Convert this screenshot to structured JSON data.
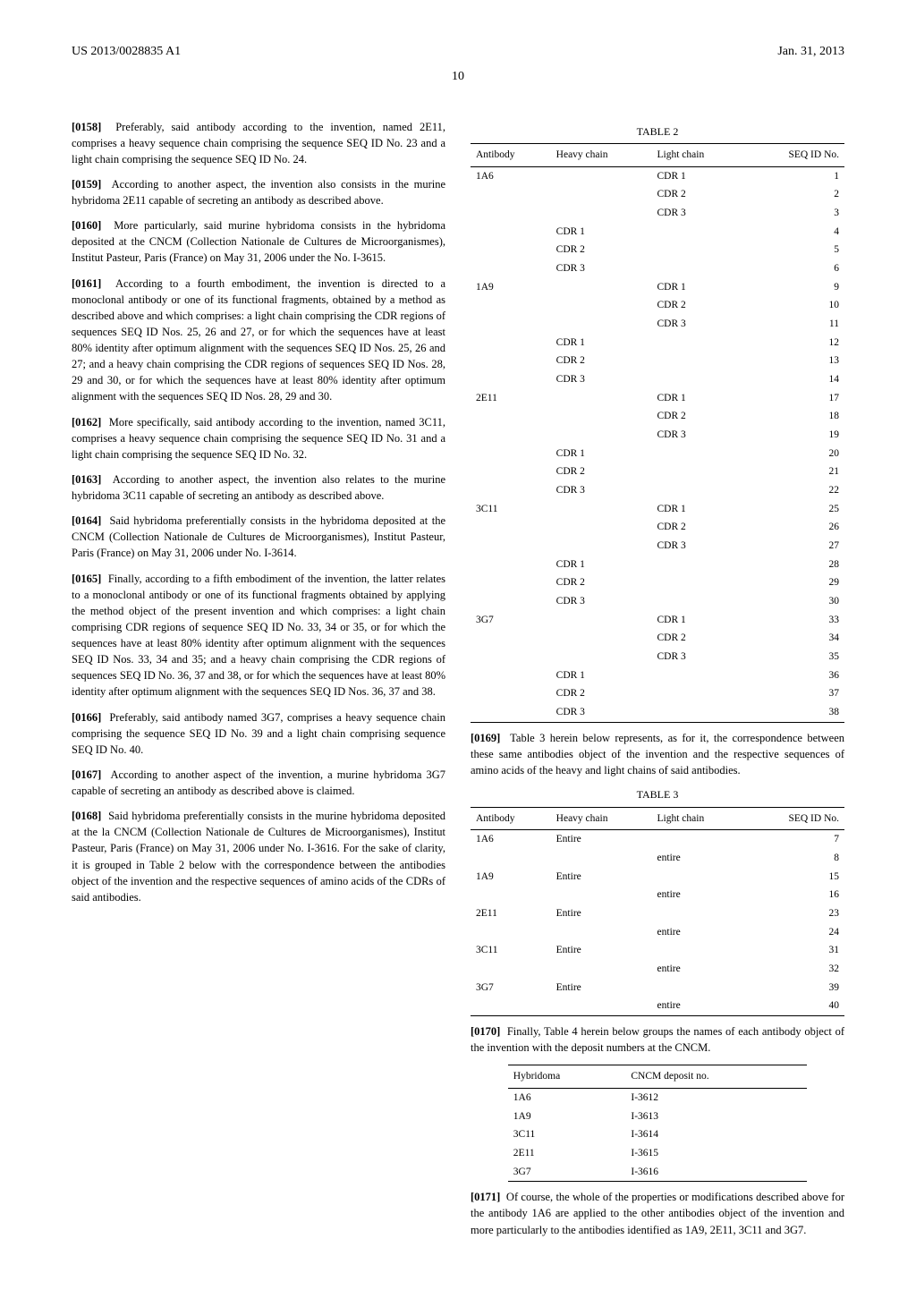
{
  "header": {
    "pub_number": "US 2013/0028835 A1",
    "pub_date": "Jan. 31, 2013",
    "page_number": "10"
  },
  "left_column": {
    "p0158": {
      "num": "[0158]",
      "text": "Preferably, said antibody according to the invention, named 2E11, comprises a heavy sequence chain comprising the sequence SEQ ID No. 23 and a light chain comprising the sequence SEQ ID No. 24."
    },
    "p0159": {
      "num": "[0159]",
      "text": "According to another aspect, the invention also consists in the murine hybridoma 2E11 capable of secreting an antibody as described above."
    },
    "p0160": {
      "num": "[0160]",
      "text": "More particularly, said murine hybridoma consists in the hybridoma deposited at the CNCM (Collection Nationale de Cultures de Microorganismes), Institut Pasteur, Paris (France) on May 31, 2006 under the No. I-3615."
    },
    "p0161": {
      "num": "[0161]",
      "text": "According to a fourth embodiment, the invention is directed to a monoclonal antibody or one of its functional fragments, obtained by a method as described above and which comprises: a light chain comprising the CDR regions of sequences SEQ ID Nos. 25, 26 and 27, or for which the sequences have at least 80% identity after optimum alignment with the sequences SEQ ID Nos. 25, 26 and 27; and a heavy chain comprising the CDR regions of sequences SEQ ID Nos. 28, 29 and 30, or for which the sequences have at least 80% identity after optimum alignment with the sequences SEQ ID Nos. 28, 29 and 30."
    },
    "p0162": {
      "num": "[0162]",
      "text": "More specifically, said antibody according to the invention, named 3C11, comprises a heavy sequence chain comprising the sequence SEQ ID No. 31 and a light chain comprising the sequence SEQ ID No. 32."
    },
    "p0163": {
      "num": "[0163]",
      "text": "According to another aspect, the invention also relates to the murine hybridoma 3C11 capable of secreting an antibody as described above."
    },
    "p0164": {
      "num": "[0164]",
      "text": "Said hybridoma preferentially consists in the hybridoma deposited at the CNCM (Collection Nationale de Cultures de Microorganismes), Institut Pasteur, Paris (France) on May 31, 2006 under No. I-3614."
    },
    "p0165": {
      "num": "[0165]",
      "text": "Finally, according to a fifth embodiment of the invention, the latter relates to a monoclonal antibody or one of its functional fragments obtained by applying the method object of the present invention and which comprises: a light chain comprising CDR regions of sequence SEQ ID No. 33, 34 or 35, or for which the sequences have at least 80% identity after optimum alignment with the sequences SEQ ID Nos. 33, 34 and 35; and a heavy chain comprising the CDR regions of sequences SEQ ID No. 36, 37 and 38, or for which the sequences have at least 80% identity after optimum alignment with the sequences SEQ ID Nos. 36, 37 and 38."
    },
    "p0166": {
      "num": "[0166]",
      "text": "Preferably, said antibody named 3G7, comprises a heavy sequence chain comprising the sequence SEQ ID No. 39 and a light chain comprising sequence SEQ ID No. 40."
    },
    "p0167": {
      "num": "[0167]",
      "text": "According to another aspect of the invention, a murine hybridoma 3G7 capable of secreting an antibody as described above is claimed."
    },
    "p0168": {
      "num": "[0168]",
      "text": "Said hybridoma preferentially consists in the murine hybridoma deposited at the la CNCM (Collection Nationale de Cultures de Microorganismes), Institut Pasteur, Paris (France) on May 31, 2006 under No. I-3616. For the sake of clarity, it is grouped in Table 2 below with the correspondence between the antibodies object of the invention and the respective sequences of amino acids of the CDRs of said antibodies."
    }
  },
  "right_column": {
    "table2": {
      "caption": "TABLE 2",
      "columns": [
        "Antibody",
        "Heavy chain",
        "Light chain",
        "SEQ ID No."
      ],
      "rows": [
        [
          "1A6",
          "",
          "CDR 1",
          "1"
        ],
        [
          "",
          "",
          "CDR 2",
          "2"
        ],
        [
          "",
          "",
          "CDR 3",
          "3"
        ],
        [
          "",
          "CDR 1",
          "",
          "4"
        ],
        [
          "",
          "CDR 2",
          "",
          "5"
        ],
        [
          "",
          "CDR 3",
          "",
          "6"
        ],
        [
          "1A9",
          "",
          "CDR 1",
          "9"
        ],
        [
          "",
          "",
          "CDR 2",
          "10"
        ],
        [
          "",
          "",
          "CDR 3",
          "11"
        ],
        [
          "",
          "CDR 1",
          "",
          "12"
        ],
        [
          "",
          "CDR 2",
          "",
          "13"
        ],
        [
          "",
          "CDR 3",
          "",
          "14"
        ],
        [
          "2E11",
          "",
          "CDR 1",
          "17"
        ],
        [
          "",
          "",
          "CDR 2",
          "18"
        ],
        [
          "",
          "",
          "CDR 3",
          "19"
        ],
        [
          "",
          "CDR 1",
          "",
          "20"
        ],
        [
          "",
          "CDR 2",
          "",
          "21"
        ],
        [
          "",
          "CDR 3",
          "",
          "22"
        ],
        [
          "3C11",
          "",
          "CDR 1",
          "25"
        ],
        [
          "",
          "",
          "CDR 2",
          "26"
        ],
        [
          "",
          "",
          "CDR 3",
          "27"
        ],
        [
          "",
          "CDR 1",
          "",
          "28"
        ],
        [
          "",
          "CDR 2",
          "",
          "29"
        ],
        [
          "",
          "CDR 3",
          "",
          "30"
        ],
        [
          "3G7",
          "",
          "CDR 1",
          "33"
        ],
        [
          "",
          "",
          "CDR 2",
          "34"
        ],
        [
          "",
          "",
          "CDR 3",
          "35"
        ],
        [
          "",
          "CDR 1",
          "",
          "36"
        ],
        [
          "",
          "CDR 2",
          "",
          "37"
        ],
        [
          "",
          "CDR 3",
          "",
          "38"
        ]
      ]
    },
    "p0169": {
      "num": "[0169]",
      "text": "Table 3 herein below represents, as for it, the correspondence between these same antibodies object of the invention and the respective sequences of amino acids of the heavy and light chains of said antibodies."
    },
    "table3": {
      "caption": "TABLE 3",
      "columns": [
        "Antibody",
        "Heavy chain",
        "Light chain",
        "SEQ ID No."
      ],
      "rows": [
        [
          "1A6",
          "Entire",
          "",
          "7"
        ],
        [
          "",
          "",
          "entire",
          "8"
        ],
        [
          "1A9",
          "Entire",
          "",
          "15"
        ],
        [
          "",
          "",
          "entire",
          "16"
        ],
        [
          "2E11",
          "Entire",
          "",
          "23"
        ],
        [
          "",
          "",
          "entire",
          "24"
        ],
        [
          "3C11",
          "Entire",
          "",
          "31"
        ],
        [
          "",
          "",
          "entire",
          "32"
        ],
        [
          "3G7",
          "Entire",
          "",
          "39"
        ],
        [
          "",
          "",
          "entire",
          "40"
        ]
      ]
    },
    "p0170": {
      "num": "[0170]",
      "text": "Finally, Table 4 herein below groups the names of each antibody object of the invention with the deposit numbers at the CNCM."
    },
    "table4": {
      "columns": [
        "Hybridoma",
        "CNCM deposit no."
      ],
      "rows": [
        [
          "1A6",
          "I-3612"
        ],
        [
          "1A9",
          "I-3613"
        ],
        [
          "3C11",
          "I-3614"
        ],
        [
          "2E11",
          "I-3615"
        ],
        [
          "3G7",
          "I-3616"
        ]
      ]
    },
    "p0171": {
      "num": "[0171]",
      "text": "Of course, the whole of the properties or modifications described above for the antibody 1A6 are applied to the other antibodies object of the invention and more particularly to the antibodies identified as 1A9, 2E11, 3C11 and 3G7."
    }
  }
}
